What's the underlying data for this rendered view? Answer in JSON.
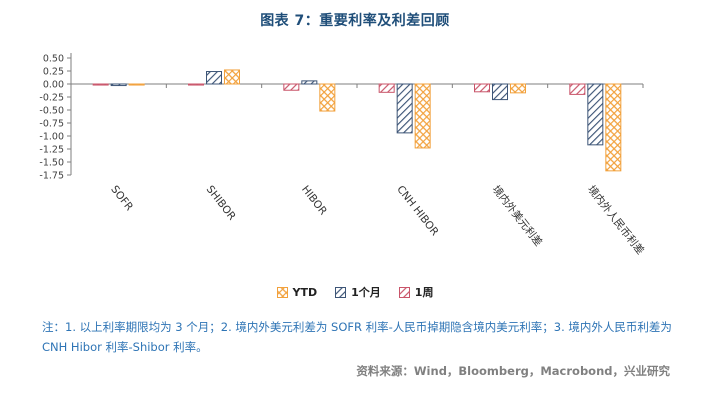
{
  "figure": {
    "note": "注：1. 以上利率期限均为 3 个月；2. 境内外美元利差为 SOFR 利率-人民币掉期隐含境内美元利率；3. 境内外人民币利差为 CNH Hibor 利率-Shibor 利率。",
    "source": "资料来源：Wind，Bloomberg，Macrobond，兴业研究"
  },
  "chart_data": {
    "type": "bar",
    "title": "图表 7：重要利率及利差回顾",
    "categories": [
      "SOFR",
      "SHIBOR",
      "HIBOR",
      "CNH HIBOR",
      "境内外美元利差",
      "境内外人民币利差"
    ],
    "series": [
      {
        "name": "1周",
        "color": "#C9556A",
        "pattern": "diagonal",
        "values": [
          -0.02,
          -0.02,
          -0.12,
          -0.16,
          -0.15,
          -0.2
        ]
      },
      {
        "name": "1个月",
        "color": "#3D5577",
        "pattern": "diagonal",
        "values": [
          -0.03,
          0.24,
          0.06,
          -0.94,
          -0.3,
          -1.17
        ]
      },
      {
        "name": "YTD",
        "color": "#F2A13C",
        "pattern": "cross",
        "values": [
          -0.02,
          0.27,
          -0.52,
          -1.23,
          -0.17,
          -1.67
        ]
      }
    ],
    "legend": [
      "YTD",
      "1个月",
      "1周"
    ],
    "legend_position": "bottom",
    "ylim": [
      -1.75,
      0.5
    ],
    "ytick_step": 0.25,
    "grid": false,
    "axis_color": "#7F7F7F"
  }
}
